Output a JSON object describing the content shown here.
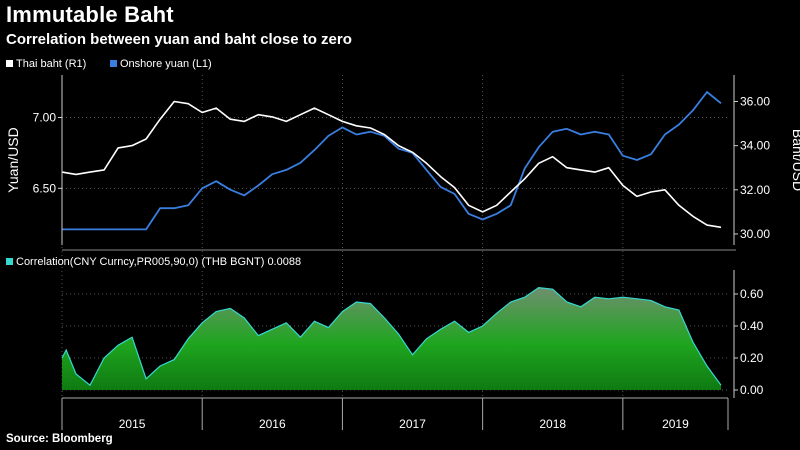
{
  "title": "Immutable Baht",
  "subtitle": "Correlation between yuan and baht close to zero",
  "source": "Source: Bloomberg",
  "colors": {
    "baht": "#ffffff",
    "yuan": "#3a7ee0",
    "correlation_line": "#35d9cf",
    "correlation_fill": "#1fa51f",
    "axis": "#cccccc",
    "grid": "#555555"
  },
  "chart_data": [
    {
      "type": "line",
      "legend": {
        "placement": "top-left"
      },
      "series": [
        {
          "name": "Thai baht (R1)",
          "axis": "right",
          "x": [
            2015.0,
            2015.1,
            2015.2,
            2015.3,
            2015.4,
            2015.5,
            2015.6,
            2015.7,
            2015.8,
            2015.9,
            2016.0,
            2016.1,
            2016.2,
            2016.3,
            2016.4,
            2016.5,
            2016.6,
            2016.7,
            2016.8,
            2016.9,
            2017.0,
            2017.1,
            2017.2,
            2017.3,
            2017.4,
            2017.5,
            2017.6,
            2017.7,
            2017.8,
            2017.9,
            2018.0,
            2018.1,
            2018.2,
            2018.3,
            2018.4,
            2018.5,
            2018.6,
            2018.7,
            2018.8,
            2018.9,
            2019.0,
            2019.1,
            2019.2,
            2019.3,
            2019.4,
            2019.5,
            2019.6,
            2019.7
          ],
          "values": [
            32.8,
            32.7,
            32.8,
            32.9,
            33.9,
            34.0,
            34.3,
            35.2,
            36.0,
            35.9,
            35.5,
            35.7,
            35.2,
            35.1,
            35.4,
            35.3,
            35.1,
            35.4,
            35.7,
            35.4,
            35.1,
            34.9,
            34.8,
            34.5,
            34.0,
            33.7,
            33.2,
            32.6,
            32.1,
            31.3,
            31.0,
            31.3,
            31.9,
            32.5,
            33.2,
            33.5,
            33.0,
            32.9,
            32.8,
            33.0,
            32.2,
            31.7,
            31.9,
            32.0,
            31.3,
            30.8,
            30.4,
            30.3
          ]
        },
        {
          "name": "Onshore yuan (L1)",
          "axis": "left",
          "x": [
            2015.0,
            2015.1,
            2015.2,
            2015.3,
            2015.4,
            2015.5,
            2015.6,
            2015.7,
            2015.8,
            2015.9,
            2016.0,
            2016.1,
            2016.2,
            2016.3,
            2016.4,
            2016.5,
            2016.6,
            2016.7,
            2016.8,
            2016.9,
            2017.0,
            2017.1,
            2017.2,
            2017.3,
            2017.4,
            2017.5,
            2017.6,
            2017.7,
            2017.8,
            2017.9,
            2018.0,
            2018.1,
            2018.2,
            2018.3,
            2018.4,
            2018.5,
            2018.6,
            2018.7,
            2018.8,
            2018.9,
            2019.0,
            2019.1,
            2019.2,
            2019.3,
            2019.4,
            2019.5,
            2019.6,
            2019.7
          ],
          "values": [
            6.21,
            6.21,
            6.21,
            6.21,
            6.21,
            6.21,
            6.21,
            6.36,
            6.36,
            6.38,
            6.5,
            6.55,
            6.49,
            6.45,
            6.52,
            6.6,
            6.63,
            6.68,
            6.77,
            6.87,
            6.93,
            6.88,
            6.9,
            6.87,
            6.78,
            6.75,
            6.63,
            6.51,
            6.46,
            6.32,
            6.28,
            6.32,
            6.38,
            6.64,
            6.79,
            6.9,
            6.92,
            6.88,
            6.9,
            6.88,
            6.73,
            6.7,
            6.74,
            6.88,
            6.95,
            7.05,
            7.18,
            7.1
          ]
        }
      ],
      "axes": {
        "x": {
          "range": [
            2015.0,
            2019.75
          ]
        },
        "left": {
          "label": "Yuan/USD",
          "range": [
            6.1,
            7.3
          ],
          "ticks": [
            "6.50",
            "7.00"
          ]
        },
        "right": {
          "label": "Baht/USD",
          "range": [
            29.5,
            37.2
          ],
          "ticks": [
            "30.00",
            "32.00",
            "34.00",
            "36.00"
          ]
        }
      }
    },
    {
      "type": "area",
      "series": [
        {
          "name": "Correlation(CNY Curncy,PR005,90,0) (THB BGNT) 0.0088",
          "x": [
            2015.0,
            2015.03,
            2015.1,
            2015.2,
            2015.3,
            2015.4,
            2015.5,
            2015.6,
            2015.7,
            2015.8,
            2015.9,
            2016.0,
            2016.1,
            2016.2,
            2016.3,
            2016.4,
            2016.5,
            2016.6,
            2016.7,
            2016.8,
            2016.9,
            2017.0,
            2017.1,
            2017.2,
            2017.3,
            2017.4,
            2017.5,
            2017.6,
            2017.7,
            2017.8,
            2017.9,
            2018.0,
            2018.1,
            2018.2,
            2018.3,
            2018.4,
            2018.5,
            2018.6,
            2018.7,
            2018.8,
            2018.9,
            2019.0,
            2019.1,
            2019.2,
            2019.3,
            2019.4,
            2019.5,
            2019.6,
            2019.7
          ],
          "values": [
            0.2,
            0.25,
            0.1,
            0.03,
            0.2,
            0.28,
            0.33,
            0.07,
            0.15,
            0.19,
            0.32,
            0.42,
            0.49,
            0.51,
            0.45,
            0.34,
            0.38,
            0.42,
            0.33,
            0.43,
            0.39,
            0.49,
            0.55,
            0.54,
            0.45,
            0.35,
            0.22,
            0.32,
            0.38,
            0.43,
            0.36,
            0.4,
            0.48,
            0.55,
            0.58,
            0.64,
            0.63,
            0.55,
            0.52,
            0.58,
            0.57,
            0.58,
            0.57,
            0.56,
            0.52,
            0.5,
            0.3,
            0.15,
            0.03
          ]
        }
      ],
      "axes": {
        "x": {
          "range": [
            2015.0,
            2019.75
          ],
          "ticks": [
            "2015",
            "2016",
            "2017",
            "2018",
            "2019"
          ]
        },
        "right": {
          "range": [
            -0.05,
            0.75
          ],
          "ticks": [
            "0.00",
            "0.20",
            "0.40",
            "0.60"
          ]
        }
      }
    }
  ]
}
